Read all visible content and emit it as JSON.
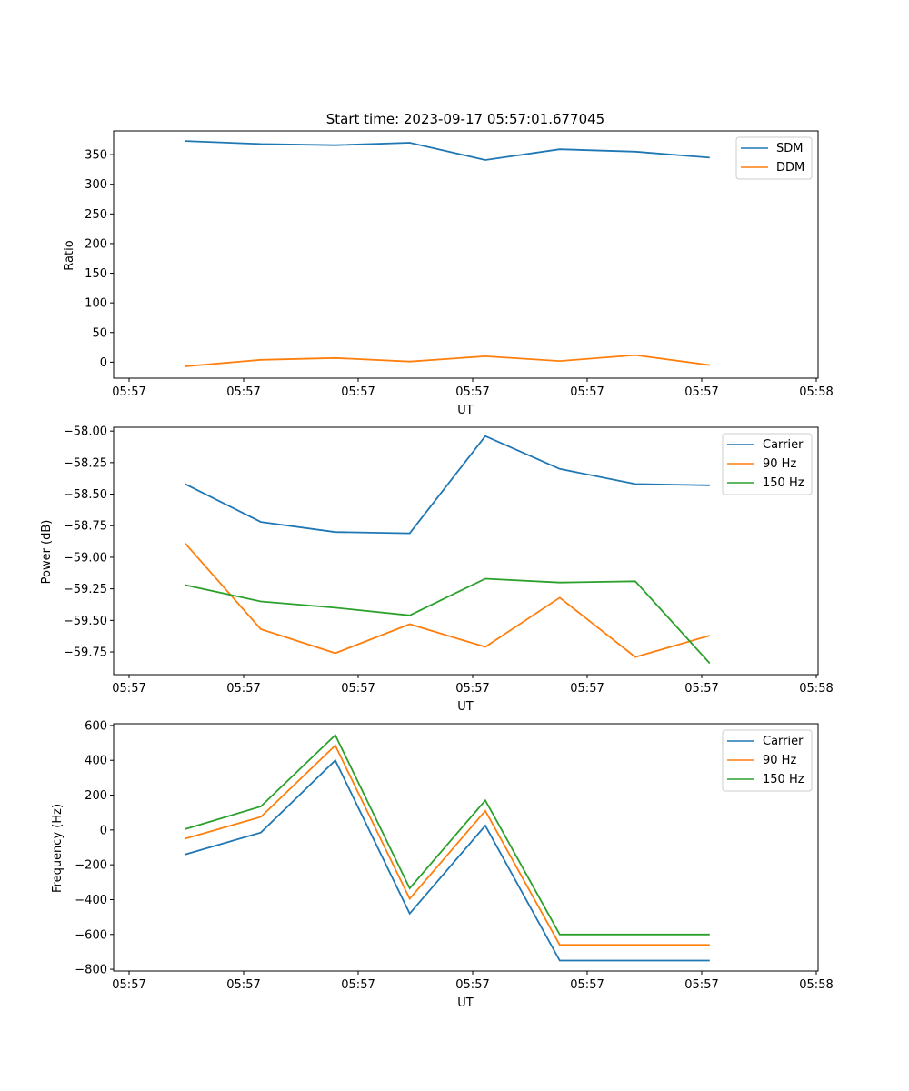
{
  "title": "Start time: 2023-09-17 05:57:01.677045",
  "colors": {
    "c0": "#1f77b4",
    "c1": "#ff7f0e",
    "c2": "#2ca02c"
  },
  "chart_data": [
    {
      "type": "line",
      "title": "Start time: 2023-09-17 05:57:01.677045",
      "xlabel": "UT",
      "ylabel": "Ratio",
      "xlim": [
        0,
        6
      ],
      "ylim": [
        -27,
        390
      ],
      "xticks": [
        0,
        1,
        2,
        3,
        4,
        5,
        6
      ],
      "xtick_labels": [
        "05:57",
        "05:57",
        "05:57",
        "05:57",
        "05:57",
        "05:57",
        "05:58"
      ],
      "yticks": [
        0,
        50,
        100,
        150,
        200,
        250,
        300,
        350
      ],
      "ytick_labels": [
        "0",
        "50",
        "100",
        "150",
        "200",
        "250",
        "300",
        "350"
      ],
      "legend_position": "top-right",
      "x": [
        0.49,
        1.15,
        1.8,
        2.45,
        3.11,
        3.76,
        4.42,
        5.07
      ],
      "series": [
        {
          "name": "SDM",
          "color": "#1f77b4",
          "values": [
            373,
            368,
            366,
            370,
            341,
            359,
            355,
            345
          ]
        },
        {
          "name": "DDM",
          "color": "#ff7f0e",
          "values": [
            -7,
            4,
            7,
            1,
            10,
            2,
            12,
            -5
          ]
        }
      ]
    },
    {
      "type": "line",
      "xlabel": "UT",
      "ylabel": "Power (dB)",
      "xlim": [
        0,
        6
      ],
      "ylim": [
        -59.93,
        -57.97
      ],
      "xticks": [
        0,
        1,
        2,
        3,
        4,
        5,
        6
      ],
      "xtick_labels": [
        "05:57",
        "05:57",
        "05:57",
        "05:57",
        "05:57",
        "05:57",
        "05:58"
      ],
      "yticks": [
        -59.75,
        -59.5,
        -59.25,
        -59.0,
        -58.75,
        -58.5,
        -58.25,
        -58.0
      ],
      "ytick_labels": [
        "−59.75",
        "−59.50",
        "−59.25",
        "−59.00",
        "−58.75",
        "−58.50",
        "−58.25",
        "−58.00"
      ],
      "legend_position": "top-right",
      "x": [
        0.49,
        1.15,
        1.8,
        2.45,
        3.11,
        3.76,
        4.42,
        5.07
      ],
      "series": [
        {
          "name": "Carrier",
          "color": "#1f77b4",
          "values": [
            -58.42,
            -58.72,
            -58.8,
            -58.81,
            -58.04,
            -58.3,
            -58.42,
            -58.43
          ]
        },
        {
          "name": "90 Hz",
          "color": "#ff7f0e",
          "values": [
            -58.89,
            -59.57,
            -59.76,
            -59.53,
            -59.71,
            -59.32,
            -59.79,
            -59.62
          ]
        },
        {
          "name": "150 Hz",
          "color": "#2ca02c",
          "values": [
            -59.22,
            -59.35,
            -59.4,
            -59.46,
            -59.17,
            -59.2,
            -59.19,
            -59.84
          ]
        }
      ]
    },
    {
      "type": "line",
      "xlabel": "UT",
      "ylabel": "Frequency (Hz)",
      "xlim": [
        0,
        6
      ],
      "ylim": [
        -810,
        610
      ],
      "xticks": [
        0,
        1,
        2,
        3,
        4,
        5,
        6
      ],
      "xtick_labels": [
        "05:57",
        "05:57",
        "05:57",
        "05:57",
        "05:57",
        "05:57",
        "05:58"
      ],
      "yticks": [
        -800,
        -600,
        -400,
        -200,
        0,
        200,
        400,
        600
      ],
      "ytick_labels": [
        "−800",
        "−600",
        "−400",
        "−200",
        "0",
        "200",
        "400",
        "600"
      ],
      "legend_position": "top-right",
      "x": [
        0.49,
        1.15,
        1.8,
        2.45,
        3.11,
        3.76,
        4.42,
        5.07
      ],
      "series": [
        {
          "name": "Carrier",
          "color": "#1f77b4",
          "values": [
            -140,
            -15,
            400,
            -480,
            25,
            -750,
            -750,
            -750
          ]
        },
        {
          "name": "90 Hz",
          "color": "#ff7f0e",
          "values": [
            -50,
            75,
            485,
            -395,
            110,
            -660,
            -660,
            -660
          ]
        },
        {
          "name": "150 Hz",
          "color": "#2ca02c",
          "values": [
            5,
            135,
            545,
            -335,
            170,
            -600,
            -600,
            -600
          ]
        }
      ]
    }
  ]
}
